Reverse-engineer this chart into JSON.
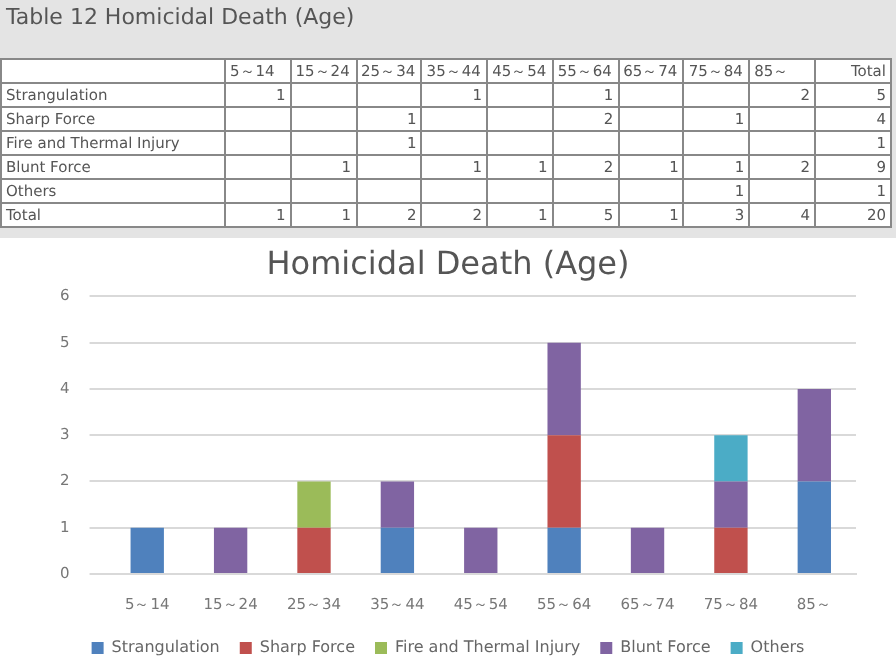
{
  "chart_data": {
    "type": "bar",
    "title": "Homicidal Death (Age)",
    "stacked": true,
    "categories": [
      "5～14",
      "15～24",
      "25～34",
      "35～44",
      "45～54",
      "55～64",
      "65～74",
      "75～84",
      "85～"
    ],
    "series": [
      {
        "name": "Strangulation",
        "color": "#4f81bd",
        "values": [
          1,
          null,
          null,
          1,
          null,
          1,
          null,
          null,
          2
        ]
      },
      {
        "name": "Sharp Force",
        "color": "#c0504d",
        "values": [
          null,
          null,
          1,
          null,
          null,
          2,
          null,
          1,
          null
        ]
      },
      {
        "name": "Fire and Thermal Injury",
        "color": "#9bbb59",
        "values": [
          null,
          null,
          1,
          null,
          null,
          null,
          null,
          null,
          null
        ]
      },
      {
        "name": "Blunt Force",
        "color": "#8064a2",
        "values": [
          null,
          1,
          null,
          1,
          1,
          2,
          1,
          1,
          2
        ]
      },
      {
        "name": "Others",
        "color": "#4bacc6",
        "values": [
          null,
          null,
          null,
          null,
          null,
          null,
          null,
          1,
          null
        ]
      }
    ],
    "annotations": [
      "Table 12 Homicidal Death (Age)",
      "Total",
      "5",
      "4",
      "1",
      "9",
      "1",
      "1",
      "1",
      "2",
      "2",
      "1",
      "5",
      "1",
      "3",
      "4",
      "20"
    ],
    "ylim": [
      0,
      6
    ],
    "yticks": [
      0,
      1,
      2,
      3,
      4,
      5,
      6
    ],
    "grid": "y",
    "legend": "bottom"
  }
}
